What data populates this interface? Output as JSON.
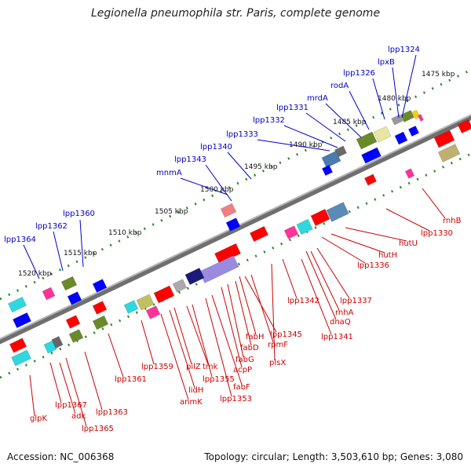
{
  "title": "Legionella pneumophila str. Paris, complete genome",
  "footer": {
    "accession": "Accession: NC_006368",
    "summary": "Topology: circular; Length: 3,503,610 bp; Genes: 3,080"
  },
  "scale_ticks": [
    {
      "label": "1475 kbp"
    },
    {
      "label": "1480 kbp"
    },
    {
      "label": "1485 kbp"
    },
    {
      "label": "1490 kbp"
    },
    {
      "label": "1495 kbp"
    },
    {
      "label": "1500 kbp"
    },
    {
      "label": "1505 kbp"
    },
    {
      "label": "1510 kbp"
    },
    {
      "label": "1515 kbp"
    },
    {
      "label": "1520 kbp"
    }
  ],
  "upper_genes": [
    {
      "label": "lpp1324"
    },
    {
      "label": "lpxB"
    },
    {
      "label": "lpp1326"
    },
    {
      "label": "rodA"
    },
    {
      "label": "mrdA"
    },
    {
      "label": "lpp1331"
    },
    {
      "label": "lpp1332"
    },
    {
      "label": "lpp1333"
    },
    {
      "label": "lpp1340"
    },
    {
      "label": "lpp1343"
    },
    {
      "label": "mnmA"
    },
    {
      "label": "lpp1360"
    },
    {
      "label": "lpp1362"
    },
    {
      "label": "lpp1364"
    }
  ],
  "lower_genes": [
    {
      "label": "rnhB"
    },
    {
      "label": "lpp1330"
    },
    {
      "label": "hutU"
    },
    {
      "label": "hutH"
    },
    {
      "label": "lpp1336"
    },
    {
      "label": "lpp1337"
    },
    {
      "label": "rnhA"
    },
    {
      "label": "dnaQ"
    },
    {
      "label": "lpp1341"
    },
    {
      "label": "lpp1342"
    },
    {
      "label": "fabH"
    },
    {
      "label": "lpp1345"
    },
    {
      "label": "rpmF"
    },
    {
      "label": "plsX"
    },
    {
      "label": "fabD"
    },
    {
      "label": "fabG"
    },
    {
      "label": "acpP"
    },
    {
      "label": "fabF"
    },
    {
      "label": "lpp1353"
    },
    {
      "label": "lpp1355"
    },
    {
      "label": "tmk"
    },
    {
      "label": "pilZ"
    },
    {
      "label": "lidH"
    },
    {
      "label": "anmK"
    },
    {
      "label": "lpp1359"
    },
    {
      "label": "lpp1361"
    },
    {
      "label": "lpp1363"
    },
    {
      "label": "lpp1365"
    },
    {
      "label": "adk"
    },
    {
      "label": "lpp1367"
    },
    {
      "label": "glpK"
    }
  ],
  "colors": {
    "forward_strand": "#0000ff",
    "reverse_strand": "#ff0000",
    "label_up": "#0000cc",
    "label_down": "#cc0000",
    "backbone": "#888888",
    "ruler": "#2a8a2a"
  }
}
